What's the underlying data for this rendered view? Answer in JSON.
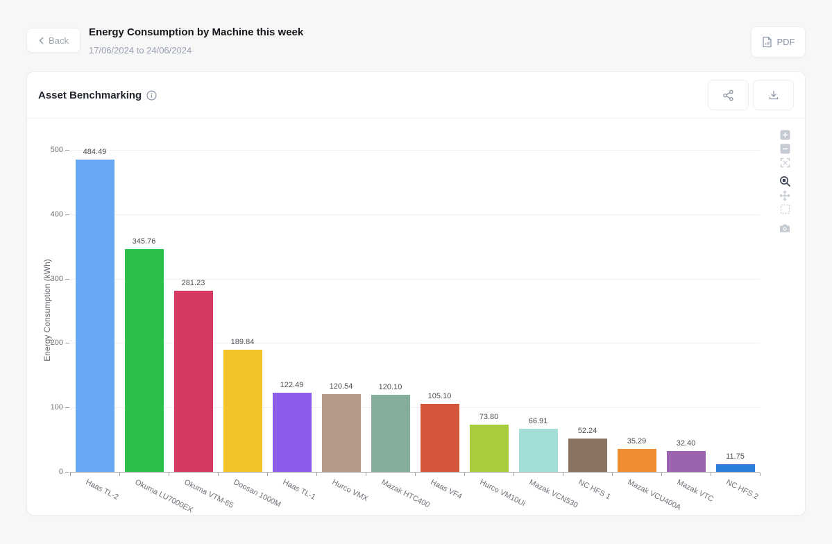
{
  "header": {
    "back_label": "Back",
    "title": "Energy Consumption by Machine this week",
    "date_range": "17/06/2024 to 24/06/2024",
    "pdf_label": "PDF"
  },
  "card": {
    "title": "Asset Benchmarking",
    "icons": [
      "info-icon",
      "share-icon",
      "download-icon"
    ]
  },
  "plot_toolbar": {
    "icons": [
      "zoom-in",
      "zoom-out",
      "reset-view",
      "zoom-box-active",
      "pan",
      "box-select",
      "camera"
    ],
    "inactive_color": "#c6cad2",
    "active_color": "#3c4352"
  },
  "colors": {
    "page_bg": "#f7f7f8",
    "card_bg": "#ffffff",
    "border": "#ececf0",
    "grid": "#efeff2",
    "axis": "#9ba1a8",
    "muted_text": "#98a1b0",
    "icon_gray": "#8a93a3"
  },
  "chart_data": {
    "type": "bar",
    "title": "Asset Benchmarking",
    "categories": [
      "Haas TL-2",
      "Okuma LU7000EX",
      "Okuma VTM-65",
      "Doosan 1000M",
      "Haas TL-1",
      "Hurco VMX",
      "Mazak HTC400",
      "Haas VF4",
      "Hurco VM10Ui",
      "Mazak VCN530",
      "NC HFS 1",
      "Mazak VCU400A",
      "Mazak VTC",
      "NC HFS 2"
    ],
    "values": [
      484.49,
      345.76,
      281.23,
      189.84,
      122.49,
      120.54,
      120.1,
      105.1,
      73.8,
      66.91,
      52.24,
      35.29,
      32.4,
      11.75
    ],
    "bar_colors": [
      "#69a8f3",
      "#2dbf4c",
      "#d63a63",
      "#f2c428",
      "#8c5cec",
      "#b49a89",
      "#84ae9b",
      "#d4573c",
      "#a7cd3d",
      "#a3ded8",
      "#8b7364",
      "#f08c34",
      "#9c64ae",
      "#2e7fd9"
    ],
    "xlabel": "",
    "ylabel": "Energy Consumption (kWh)",
    "ylim": [
      0,
      500
    ],
    "yticks": [
      0,
      100,
      200,
      300,
      400,
      500
    ],
    "grid": true,
    "legend": false,
    "value_labels": true,
    "value_label_decimals": 2,
    "x_label_rotation_deg": 27
  }
}
